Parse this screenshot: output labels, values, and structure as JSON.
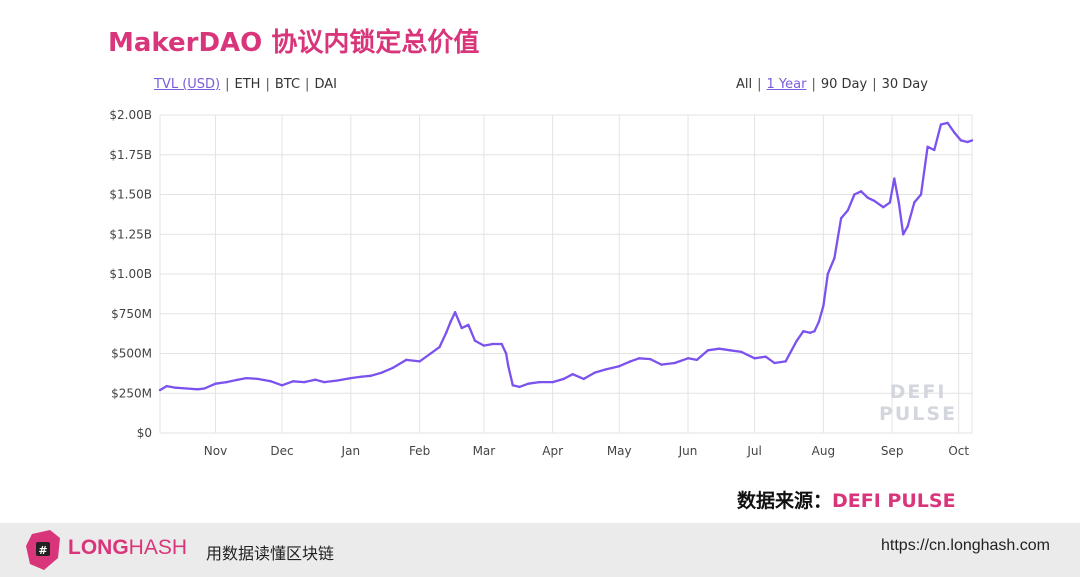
{
  "title": "MakerDAO 协议内锁定总价值",
  "units": {
    "items": [
      "TVL (USD)",
      "ETH",
      "BTC",
      "DAI"
    ],
    "active": "TVL (USD)"
  },
  "ranges": {
    "items": [
      "All",
      "1 Year",
      "90 Day",
      "30 Day"
    ],
    "active": "1 Year"
  },
  "chart_data": {
    "type": "line",
    "ylim": [
      0,
      2000
    ],
    "yticks": [
      0,
      250,
      500,
      750,
      1000,
      1250,
      1500,
      1750,
      2000
    ],
    "ytick_labels": [
      "$0",
      "$250M",
      "$500M",
      "$750M",
      "$1.00B",
      "$1.25B",
      "$1.50B",
      "$1.75B",
      "$2.00B"
    ],
    "x_range": [
      "2019-10-07",
      "2020-10-07"
    ],
    "xticks": [
      "2019-11-01",
      "2019-12-01",
      "2020-01-01",
      "2020-02-01",
      "2020-03-01",
      "2020-04-01",
      "2020-05-01",
      "2020-06-01",
      "2020-07-01",
      "2020-08-01",
      "2020-09-01",
      "2020-10-01"
    ],
    "xtick_labels": [
      "Nov",
      "Dec",
      "Jan",
      "Feb",
      "Mar",
      "Apr",
      "May",
      "Jun",
      "Jul",
      "Aug",
      "Sep",
      "Oct"
    ],
    "grid": true,
    "color": "#7b52ee",
    "series": [
      {
        "x": [
          "2019-10-07",
          "2019-10-10",
          "2019-10-14",
          "2019-10-19",
          "2019-10-24",
          "2019-10-27",
          "2019-11-01",
          "2019-11-06",
          "2019-11-11",
          "2019-11-15",
          "2019-11-20",
          "2019-11-26",
          "2019-12-01",
          "2019-12-06",
          "2019-12-11",
          "2019-12-16",
          "2019-12-20",
          "2019-12-26",
          "2020-01-01",
          "2020-01-06",
          "2020-01-10",
          "2020-01-15",
          "2020-01-20",
          "2020-01-26",
          "2020-02-01",
          "2020-02-06",
          "2020-02-10",
          "2020-02-13",
          "2020-02-15",
          "2020-02-17",
          "2020-02-20",
          "2020-02-23",
          "2020-02-26",
          "2020-03-01",
          "2020-03-05",
          "2020-03-09",
          "2020-03-11",
          "2020-03-12",
          "2020-03-14",
          "2020-03-17",
          "2020-03-21",
          "2020-03-26",
          "2020-04-01",
          "2020-04-06",
          "2020-04-10",
          "2020-04-15",
          "2020-04-20",
          "2020-04-25",
          "2020-05-01",
          "2020-05-06",
          "2020-05-10",
          "2020-05-15",
          "2020-05-20",
          "2020-05-26",
          "2020-06-01",
          "2020-06-05",
          "2020-06-10",
          "2020-06-15",
          "2020-06-20",
          "2020-06-25",
          "2020-07-01",
          "2020-07-06",
          "2020-07-10",
          "2020-07-15",
          "2020-07-20",
          "2020-07-23",
          "2020-07-26",
          "2020-07-28",
          "2020-07-30",
          "2020-08-01",
          "2020-08-03",
          "2020-08-06",
          "2020-08-09",
          "2020-08-12",
          "2020-08-15",
          "2020-08-18",
          "2020-08-21",
          "2020-08-24",
          "2020-08-28",
          "2020-08-31",
          "2020-09-02",
          "2020-09-04",
          "2020-09-06",
          "2020-09-08",
          "2020-09-11",
          "2020-09-14",
          "2020-09-17",
          "2020-09-20",
          "2020-09-23",
          "2020-09-26",
          "2020-09-29",
          "2020-10-02",
          "2020-10-05",
          "2020-10-07"
        ],
        "y": [
          270,
          295,
          285,
          280,
          275,
          280,
          310,
          320,
          335,
          345,
          340,
          325,
          300,
          325,
          320,
          335,
          320,
          330,
          345,
          355,
          360,
          380,
          410,
          460,
          450,
          500,
          540,
          630,
          700,
          760,
          660,
          680,
          580,
          550,
          560,
          560,
          500,
          420,
          300,
          290,
          310,
          320,
          320,
          340,
          370,
          340,
          380,
          400,
          420,
          450,
          470,
          465,
          430,
          440,
          470,
          460,
          520,
          530,
          520,
          510,
          470,
          480,
          440,
          450,
          580,
          640,
          630,
          640,
          700,
          800,
          1000,
          1100,
          1350,
          1400,
          1500,
          1520,
          1480,
          1460,
          1420,
          1450,
          1600,
          1450,
          1250,
          1300,
          1450,
          1500,
          1800,
          1780,
          1940,
          1950,
          1890,
          1840,
          1830,
          1840
        ]
      }
    ]
  },
  "watermark": [
    "DEFI",
    "PULSE"
  ],
  "source": {
    "label": "数据来源：",
    "name": "DEFI PULSE"
  },
  "footer": {
    "brand_bold": "LONG",
    "brand_light": "HASH",
    "slogan": "用数据读懂区块链",
    "url": "https://cn.longhash.com"
  }
}
